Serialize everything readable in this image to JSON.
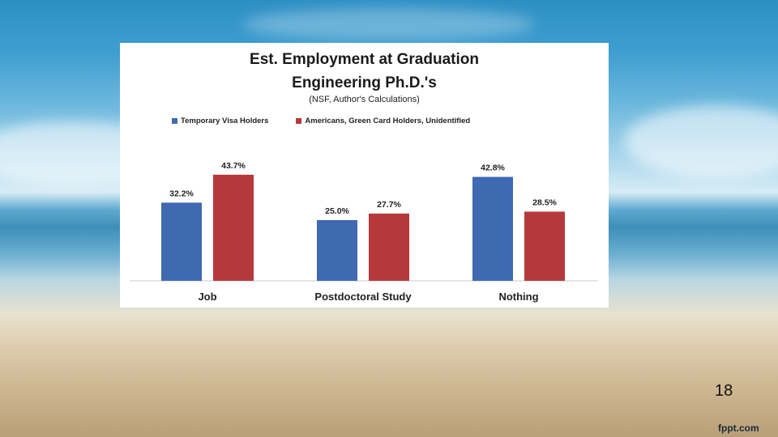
{
  "slide": {
    "page_number": "18",
    "brand": "fppt.com"
  },
  "colors": {
    "series1": "#3f69b1",
    "series2": "#b5393b"
  },
  "chart_data": {
    "type": "bar",
    "title": "Est. Employment at Graduation",
    "title_line2": "Engineering Ph.D.'s",
    "subtitle": "(NSF, Author's Calculations)",
    "categories": [
      "Job",
      "Postdoctoral Study",
      "Nothing"
    ],
    "series": [
      {
        "name": "Temporary Visa Holders",
        "values": [
          32.2,
          25.0,
          42.8
        ],
        "labels": [
          "32.2%",
          "25.0%",
          "42.8%"
        ]
      },
      {
        "name": "Americans, Green Card Holders, Unidentified",
        "values": [
          43.7,
          27.7,
          28.5
        ],
        "labels": [
          "43.7%",
          "27.7%",
          "28.5%"
        ]
      }
    ],
    "ylim": [
      0,
      50
    ],
    "grid": false,
    "legend_position": "top"
  }
}
